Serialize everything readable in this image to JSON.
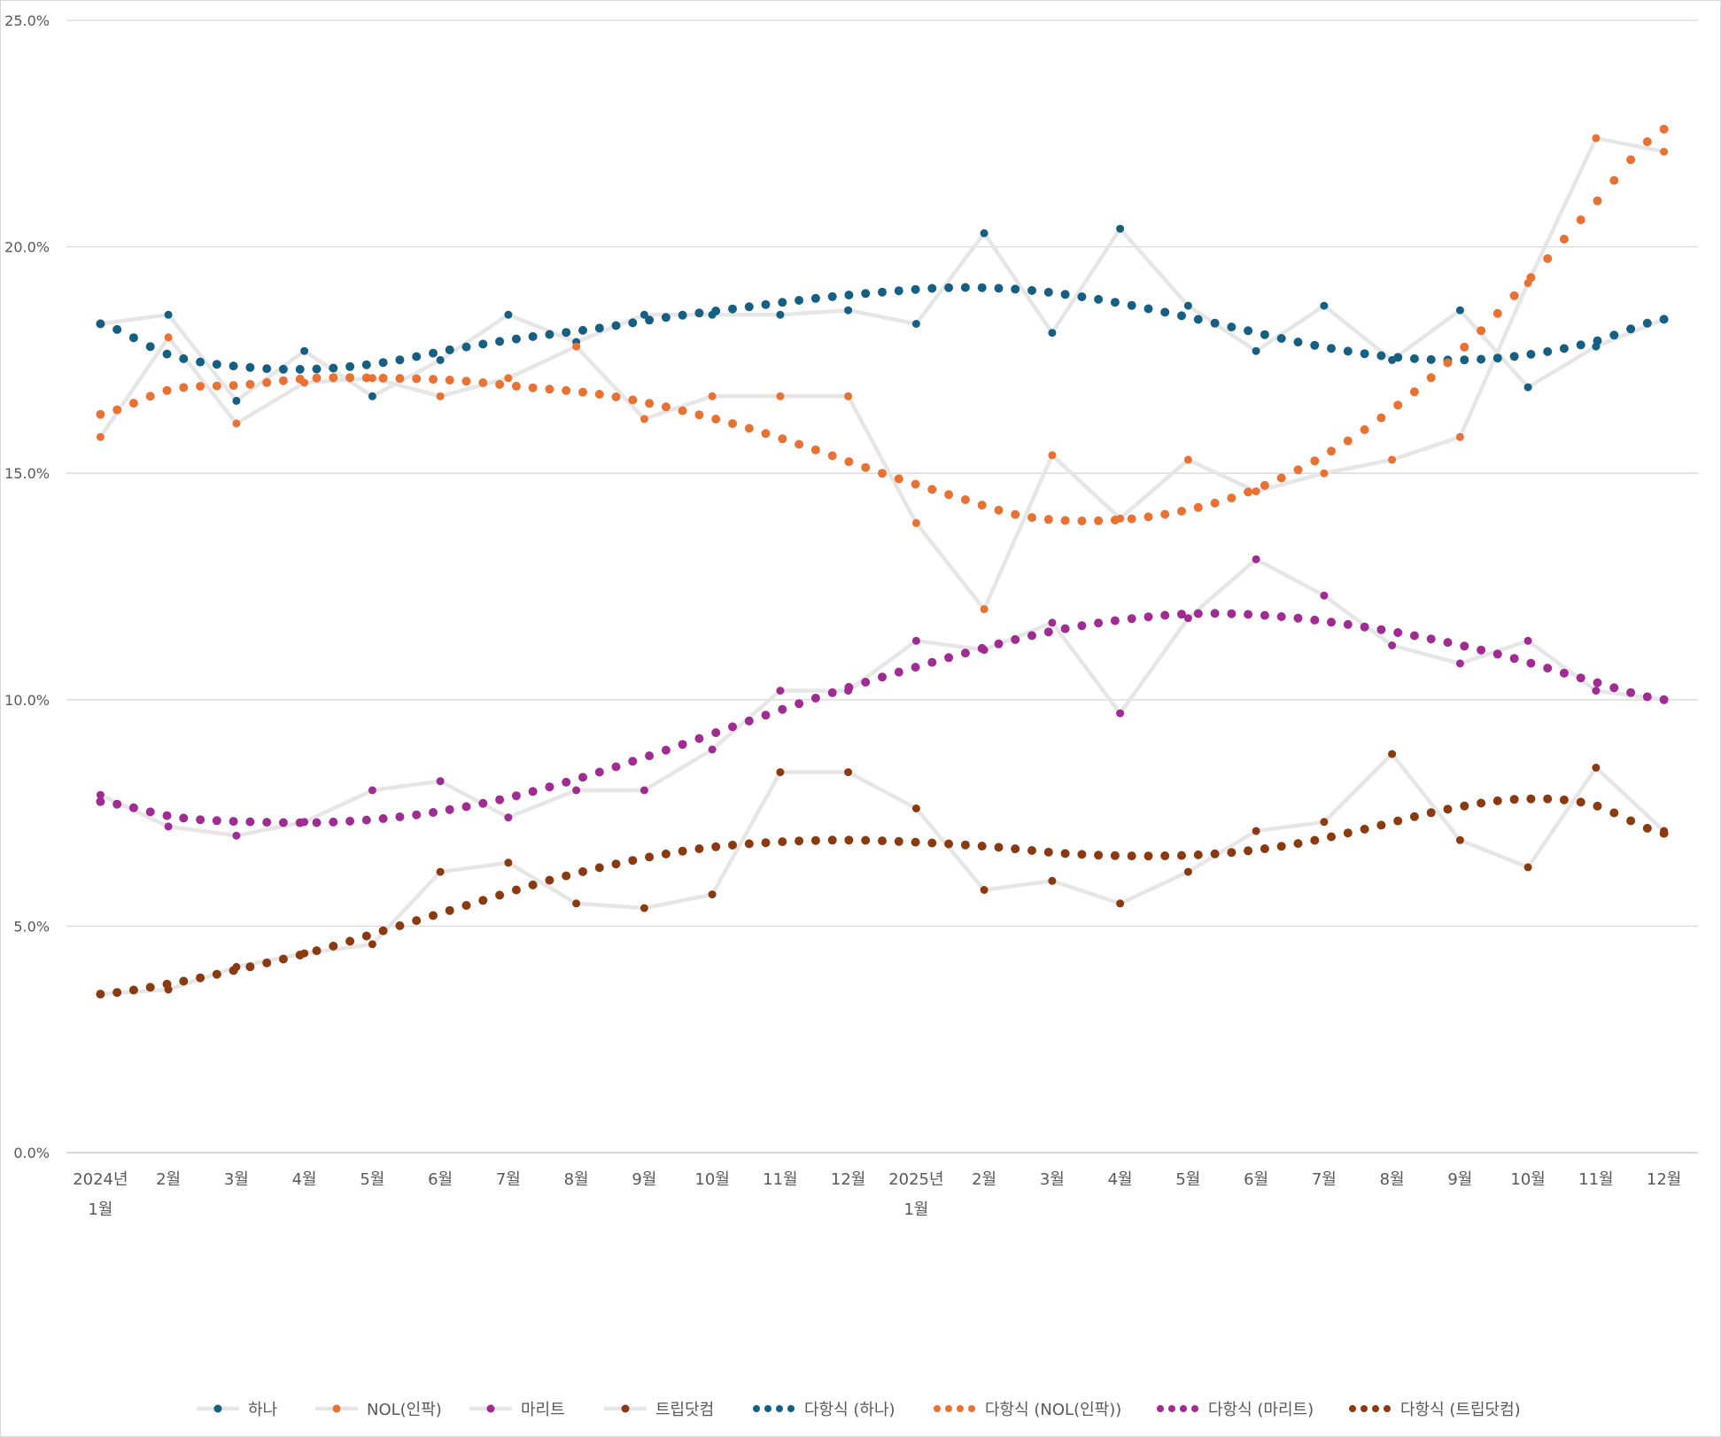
{
  "chart_data": {
    "type": "line",
    "title": "",
    "xlabel": "",
    "ylabel": "",
    "ylim": [
      0,
      25
    ],
    "y_ticks": [
      "0.0%",
      "5.0%",
      "10.0%",
      "15.0%",
      "20.0%",
      "25.0%"
    ],
    "y_tick_values": [
      0,
      5,
      10,
      15,
      20,
      25
    ],
    "grid": true,
    "legend_position": "bottom",
    "x_labels": [
      [
        "2024년",
        "1월"
      ],
      [
        "2월"
      ],
      [
        "3월"
      ],
      [
        "4월"
      ],
      [
        "5월"
      ],
      [
        "6월"
      ],
      [
        "7월"
      ],
      [
        "8월"
      ],
      [
        "9월"
      ],
      [
        "10월"
      ],
      [
        "11월"
      ],
      [
        "12월"
      ],
      [
        "2025년",
        "1월"
      ],
      [
        "2월"
      ],
      [
        "3월"
      ],
      [
        "4월"
      ],
      [
        "5월"
      ],
      [
        "6월"
      ],
      [
        "7월"
      ],
      [
        "8월"
      ],
      [
        "9월"
      ],
      [
        "10월"
      ],
      [
        "11월"
      ],
      [
        "12월"
      ]
    ],
    "series": [
      {
        "name": "하나",
        "color": "#156082",
        "line_color": "#e6e6e6",
        "values": [
          18.3,
          18.5,
          16.6,
          17.7,
          16.7,
          17.5,
          18.5,
          17.9,
          18.5,
          18.5,
          18.5,
          18.6,
          18.3,
          20.3,
          18.1,
          20.4,
          18.7,
          17.7,
          18.7,
          17.5,
          18.6,
          16.9,
          17.8,
          18.4
        ]
      },
      {
        "name": "NOL(인팍)",
        "color": "#e97132",
        "line_color": "#e6e6e6",
        "values": [
          15.8,
          18.0,
          16.1,
          17.0,
          17.1,
          16.7,
          17.1,
          17.8,
          16.2,
          16.7,
          16.7,
          16.7,
          13.9,
          12.0,
          15.4,
          14.0,
          15.3,
          14.6,
          15.0,
          15.3,
          15.8,
          19.2,
          22.4,
          22.1
        ]
      },
      {
        "name": "마리트",
        "color": "#a02b93",
        "line_color": "#e6e6e6",
        "values": [
          7.9,
          7.2,
          7.0,
          7.3,
          8.0,
          8.2,
          7.4,
          8.0,
          8.0,
          8.9,
          10.2,
          10.2,
          11.3,
          11.1,
          11.7,
          9.7,
          11.8,
          13.1,
          12.3,
          11.2,
          10.8,
          11.3,
          10.2,
          10.0
        ]
      },
      {
        "name": "트립닷컴",
        "color": "#8b3a0f",
        "line_color": "#e6e6e6",
        "values": [
          3.5,
          3.6,
          4.1,
          4.4,
          4.6,
          6.2,
          6.4,
          5.5,
          5.4,
          5.7,
          8.4,
          8.4,
          7.6,
          5.8,
          6.0,
          5.5,
          6.2,
          7.1,
          7.3,
          8.8,
          6.9,
          6.3,
          8.5,
          7.1
        ]
      },
      {
        "name": "다항식 (하나)",
        "color": "#156082",
        "trend": true,
        "values": [
          18.3,
          17.6,
          17.35,
          17.3,
          17.45,
          17.75,
          18.0,
          18.2,
          18.45,
          18.65,
          18.85,
          19.0,
          19.1,
          19.05,
          18.85,
          18.55,
          18.2,
          17.85,
          17.6,
          17.5,
          17.6,
          17.9,
          18.4
        ]
      },
      {
        "name": "다항식 (NOL(인팍))",
        "color": "#e97132",
        "trend": true,
        "values": [
          16.3,
          16.85,
          16.95,
          17.1,
          17.1,
          17.05,
          16.9,
          16.75,
          16.45,
          16.05,
          15.55,
          15.0,
          14.5,
          14.05,
          13.95,
          14.1,
          14.5,
          15.2,
          16.2,
          17.5,
          19.1,
          20.9,
          22.6
        ]
      },
      {
        "name": "다항식 (마리트)",
        "color": "#a02b93",
        "trend": true,
        "values": [
          7.75,
          7.4,
          7.3,
          7.3,
          7.45,
          7.75,
          8.2,
          8.75,
          9.35,
          9.95,
          10.5,
          11.0,
          11.45,
          11.75,
          11.9,
          11.85,
          11.65,
          11.35,
          10.95,
          10.45,
          10.0
        ]
      },
      {
        "name": "다항식 (트립닷컴)",
        "color": "#8b3a0f",
        "trend": true,
        "values": [
          3.5,
          3.75,
          4.1,
          4.5,
          5.0,
          5.5,
          6.0,
          6.4,
          6.7,
          6.85,
          6.9,
          6.85,
          6.75,
          6.6,
          6.55,
          6.6,
          6.8,
          7.15,
          7.55,
          7.8,
          7.7,
          7.05
        ]
      }
    ]
  }
}
